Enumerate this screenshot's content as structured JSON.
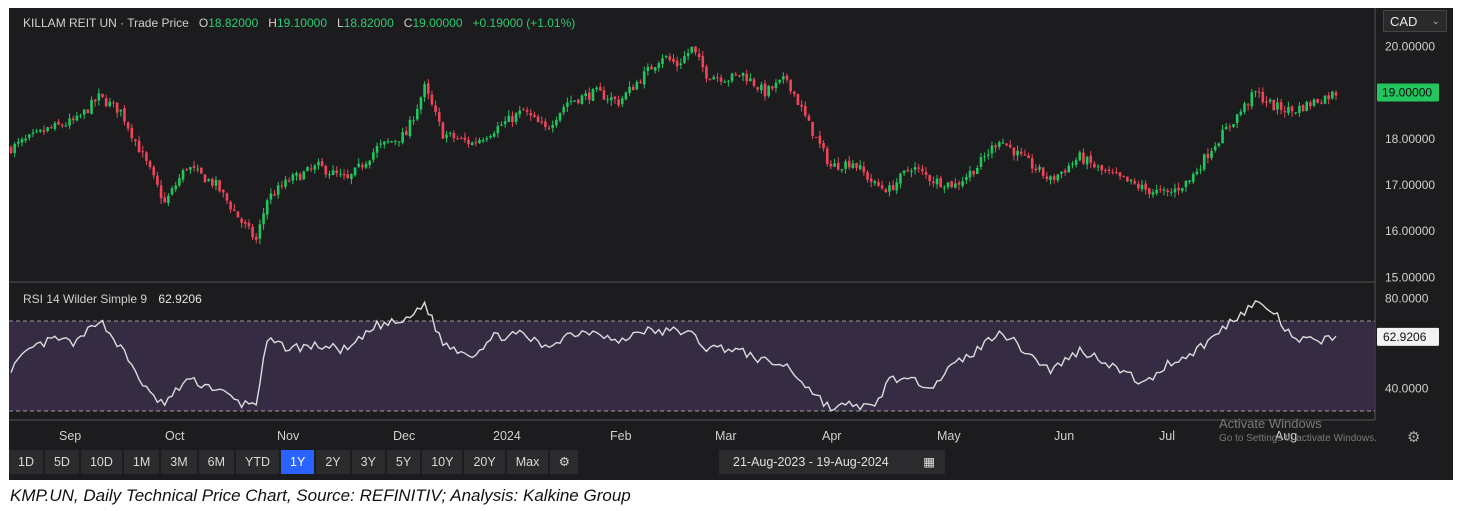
{
  "header": {
    "symbol_label": "KILLAM REIT UN · Trade Price",
    "open_key": "O",
    "open_value": "18.82000",
    "high_key": "H",
    "high_value": "19.10000",
    "low_key": "L",
    "low_value": "18.82000",
    "close_key": "C",
    "close_value": "19.00000",
    "change_value": "+0.19000 (+1.01%)",
    "currency": "CAD"
  },
  "rsi": {
    "label": "RSI 14 Wilder Simple 9",
    "value": "62.9206"
  },
  "colors": {
    "up": "#26a69a",
    "down": "#ef5350",
    "up_candle": "#22c55e",
    "down_candle": "#f0445a",
    "rsi_line": "#dcdcdc",
    "rsi_band": "#3a2f4a",
    "active_range": "#2962ff",
    "last_price_bg": "#22c55e"
  },
  "toolbar": {
    "ranges": [
      "1D",
      "5D",
      "10D",
      "1M",
      "3M",
      "6M",
      "YTD",
      "1Y",
      "2Y",
      "3Y",
      "5Y",
      "10Y",
      "20Y",
      "Max"
    ],
    "active_range": "1Y",
    "date_from": "21-Aug-2023",
    "date_sep": "-",
    "date_to": "19-Aug-2024"
  },
  "watermark": {
    "line1": "Activate Windows",
    "line2": "Go to Settings to activate Windows."
  },
  "caption": "KMP.UN, Daily Technical Price Chart, Source: REFINITIV; Analysis: Kalkine Group",
  "chart_data": {
    "type": "candlestick",
    "price_axis": {
      "ticks": [
        "20.00000",
        "19.00000",
        "18.00000",
        "17.00000",
        "16.00000",
        "15.00000"
      ],
      "ylim": [
        14.9,
        20.7
      ],
      "last_price": "19.00000"
    },
    "rsi_axis": {
      "ticks": [
        "80.0000",
        "40.0000"
      ],
      "ylim": [
        26,
        86
      ],
      "band": [
        30,
        70
      ],
      "last_value": "62.9206"
    },
    "x_ticks": [
      "Sep",
      "Oct",
      "Nov",
      "Dec",
      "2024",
      "Feb",
      "Mar",
      "Apr",
      "May",
      "Jun",
      "Jul",
      "Aug"
    ],
    "close_anchors": [
      [
        0,
        17.8
      ],
      [
        10,
        18.2
      ],
      [
        18,
        18.4
      ],
      [
        24,
        18.9
      ],
      [
        30,
        18.6
      ],
      [
        38,
        17.3
      ],
      [
        42,
        16.6
      ],
      [
        48,
        17.4
      ],
      [
        56,
        17.0
      ],
      [
        63,
        16.2
      ],
      [
        67,
        15.8
      ],
      [
        70,
        16.7
      ],
      [
        76,
        17.1
      ],
      [
        84,
        17.4
      ],
      [
        92,
        17.1
      ],
      [
        100,
        17.8
      ],
      [
        108,
        18.1
      ],
      [
        113,
        19.1
      ],
      [
        118,
        18.1
      ],
      [
        126,
        17.9
      ],
      [
        132,
        18.2
      ],
      [
        140,
        18.6
      ],
      [
        146,
        18.2
      ],
      [
        152,
        18.8
      ],
      [
        160,
        19.0
      ],
      [
        166,
        18.8
      ],
      [
        172,
        19.3
      ],
      [
        178,
        19.8
      ],
      [
        182,
        19.6
      ],
      [
        186,
        19.95
      ],
      [
        190,
        19.4
      ],
      [
        196,
        19.3
      ],
      [
        200,
        19.4
      ],
      [
        206,
        19.0
      ],
      [
        212,
        19.3
      ],
      [
        218,
        18.3
      ],
      [
        224,
        17.4
      ],
      [
        230,
        17.5
      ],
      [
        236,
        17.0
      ],
      [
        240,
        16.9
      ],
      [
        246,
        17.4
      ],
      [
        252,
        17.1
      ],
      [
        258,
        17.0
      ],
      [
        264,
        17.4
      ],
      [
        270,
        18.0
      ],
      [
        276,
        17.6
      ],
      [
        284,
        17.1
      ],
      [
        292,
        17.6
      ],
      [
        298,
        17.3
      ],
      [
        304,
        17.1
      ],
      [
        310,
        16.9
      ],
      [
        316,
        16.8
      ],
      [
        322,
        17.1
      ],
      [
        328,
        17.8
      ],
      [
        334,
        18.4
      ],
      [
        340,
        19.0
      ],
      [
        345,
        18.7
      ],
      [
        350,
        18.6
      ],
      [
        356,
        18.8
      ],
      [
        362,
        19.0
      ]
    ],
    "rsi_anchors": [
      [
        0,
        49
      ],
      [
        6,
        58
      ],
      [
        12,
        62
      ],
      [
        18,
        60
      ],
      [
        24,
        71
      ],
      [
        30,
        58
      ],
      [
        38,
        37
      ],
      [
        42,
        33
      ],
      [
        48,
        44
      ],
      [
        56,
        40
      ],
      [
        63,
        33
      ],
      [
        67,
        34
      ],
      [
        70,
        61
      ],
      [
        76,
        58
      ],
      [
        84,
        59
      ],
      [
        92,
        57
      ],
      [
        100,
        68
      ],
      [
        108,
        70
      ],
      [
        113,
        78
      ],
      [
        118,
        60
      ],
      [
        126,
        55
      ],
      [
        132,
        63
      ],
      [
        140,
        64
      ],
      [
        146,
        58
      ],
      [
        152,
        64
      ],
      [
        160,
        66
      ],
      [
        166,
        60
      ],
      [
        172,
        66
      ],
      [
        178,
        65
      ],
      [
        182,
        66
      ],
      [
        186,
        64
      ],
      [
        190,
        58
      ],
      [
        196,
        58
      ],
      [
        200,
        56
      ],
      [
        206,
        52
      ],
      [
        212,
        50
      ],
      [
        218,
        40
      ],
      [
        224,
        31
      ],
      [
        230,
        33
      ],
      [
        236,
        31
      ],
      [
        240,
        45
      ],
      [
        246,
        43
      ],
      [
        252,
        42
      ],
      [
        258,
        51
      ],
      [
        264,
        57
      ],
      [
        270,
        66
      ],
      [
        276,
        58
      ],
      [
        284,
        48
      ],
      [
        292,
        57
      ],
      [
        298,
        53
      ],
      [
        304,
        47
      ],
      [
        310,
        42
      ],
      [
        316,
        51
      ],
      [
        322,
        55
      ],
      [
        328,
        62
      ],
      [
        334,
        71
      ],
      [
        340,
        78
      ],
      [
        345,
        74
      ],
      [
        350,
        62
      ],
      [
        356,
        61
      ],
      [
        362,
        63
      ]
    ]
  }
}
